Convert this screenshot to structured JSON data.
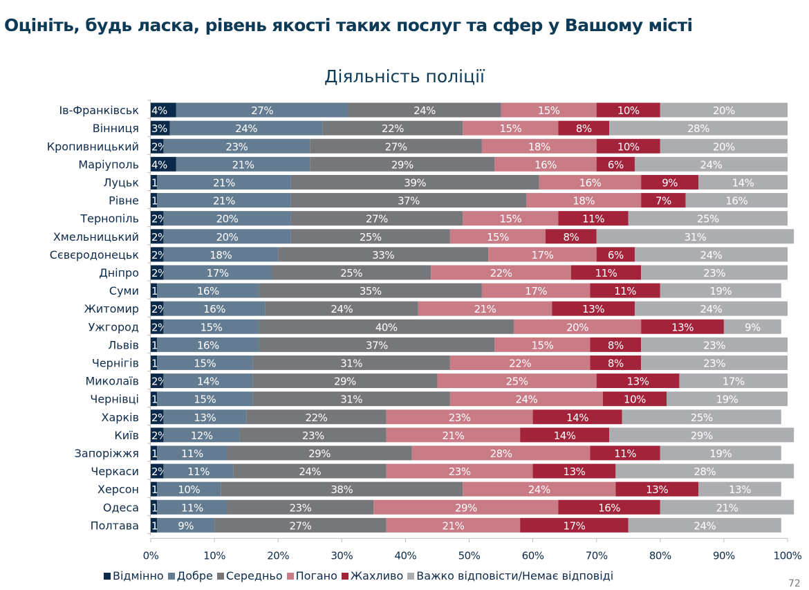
{
  "header": {
    "title": "Оцініть, будь ласка, рівень якості таких послуг та сфер у Вашому місті",
    "page_number": "72"
  },
  "chart_data": {
    "type": "bar",
    "orientation": "horizontal",
    "stacked": true,
    "title": "Діяльність поліції",
    "xlabel": "",
    "ylabel": "",
    "xlim": [
      0,
      100
    ],
    "x_ticks": [
      "0%",
      "10%",
      "20%",
      "30%",
      "40%",
      "50%",
      "60%",
      "70%",
      "80%",
      "90%",
      "100%"
    ],
    "legend_position": "bottom",
    "categories": [
      "Ів-Франківськ",
      "Вінниця",
      "Кропивницький",
      "Маріуполь",
      "Луцьк",
      "Рівне",
      "Тернопіль",
      "Хмельницький",
      "Сєвєродонецьк",
      "Дніпро",
      "Суми",
      "Житомир",
      "Ужгород",
      "Львів",
      "Чернігів",
      "Миколаїв",
      "Чернівці",
      "Харків",
      "Київ",
      "Запоріжжя",
      "Черкаси",
      "Херсон",
      "Одеса",
      "Полтава"
    ],
    "series": [
      {
        "name": "Відмінно",
        "color": "#0b2a4a",
        "values": [
          4,
          3,
          2,
          4,
          1,
          1,
          2,
          2,
          2,
          2,
          1,
          2,
          2,
          1,
          1,
          2,
          1,
          2,
          2,
          1,
          2,
          1,
          1,
          1
        ]
      },
      {
        "name": "Добре",
        "color": "#647c92",
        "values": [
          27,
          24,
          23,
          21,
          21,
          21,
          20,
          20,
          18,
          17,
          16,
          16,
          15,
          16,
          15,
          14,
          15,
          13,
          12,
          11,
          11,
          10,
          11,
          9
        ]
      },
      {
        "name": "Середньо",
        "color": "#76777b",
        "values": [
          24,
          22,
          27,
          29,
          39,
          37,
          27,
          25,
          33,
          25,
          35,
          24,
          40,
          37,
          31,
          29,
          31,
          22,
          23,
          29,
          24,
          38,
          23,
          27
        ]
      },
      {
        "name": "Погано",
        "color": "#c97b86",
        "values": [
          15,
          15,
          18,
          16,
          16,
          18,
          15,
          15,
          17,
          22,
          17,
          21,
          20,
          15,
          22,
          25,
          24,
          23,
          21,
          28,
          23,
          24,
          29,
          21
        ]
      },
      {
        "name": "Жахливо",
        "color": "#a3243a",
        "values": [
          10,
          8,
          10,
          6,
          9,
          7,
          11,
          8,
          6,
          11,
          11,
          13,
          13,
          8,
          8,
          13,
          10,
          14,
          14,
          11,
          13,
          13,
          16,
          17
        ]
      },
      {
        "name": "Важко відповісти/Немає відповіді",
        "color": "#acadb0",
        "values": [
          20,
          28,
          20,
          24,
          14,
          16,
          25,
          31,
          24,
          23,
          19,
          24,
          9,
          23,
          23,
          17,
          19,
          25,
          29,
          19,
          28,
          13,
          21,
          24
        ]
      }
    ]
  }
}
